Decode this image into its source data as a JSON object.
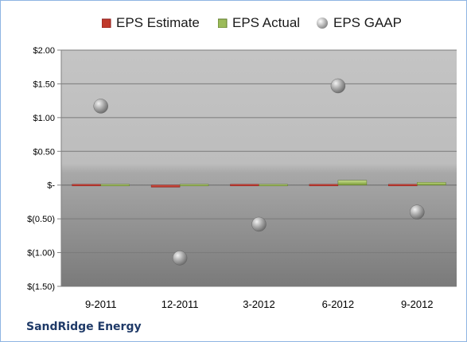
{
  "chart_data": {
    "type": "bar",
    "categories": [
      "9-2011",
      "12-2011",
      "3-2012",
      "6-2012",
      "9-2012"
    ],
    "series": [
      {
        "name": "EPS Estimate",
        "type": "bar",
        "color": "#c0392b",
        "values": [
          0.0,
          -0.03,
          0.02,
          0.0,
          0.0
        ]
      },
      {
        "name": "EPS Actual",
        "type": "bar",
        "color": "#9bbb59",
        "values": [
          0.0,
          0.01,
          0.02,
          0.07,
          0.04
        ]
      },
      {
        "name": "EPS GAAP",
        "type": "scatter",
        "color": "#a6a6a6",
        "values": [
          1.17,
          -1.08,
          -0.58,
          1.47,
          -0.4
        ]
      }
    ],
    "ylim": [
      -1.5,
      2.0
    ],
    "yticks": [
      2.0,
      1.5,
      1.0,
      0.5,
      0.0,
      -0.5,
      -1.0,
      -1.5
    ],
    "ytick_labels": [
      "$2.00",
      "$1.50",
      "$1.00",
      "$0.50",
      "$-",
      "$(0.50)",
      "$(1.00)",
      "$(1.50)"
    ],
    "grid": true,
    "legend_position": "top"
  },
  "legend": {
    "estimate": "EPS Estimate",
    "actual": "EPS Actual",
    "gaap": "EPS GAAP"
  },
  "company": "SandRidge Energy"
}
